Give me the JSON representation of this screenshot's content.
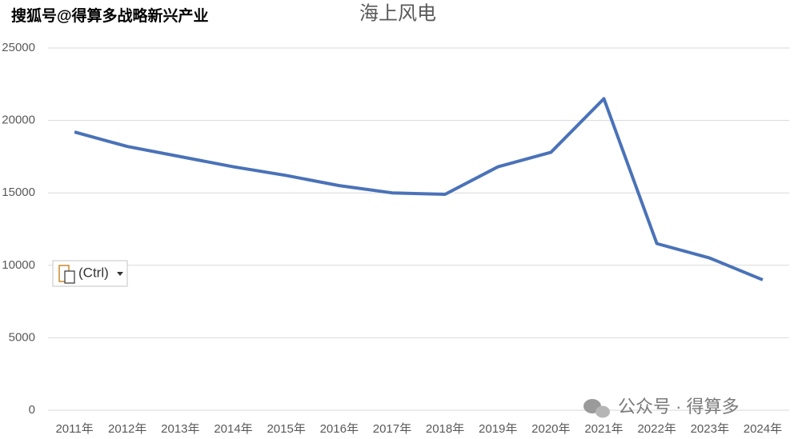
{
  "chart_data": {
    "type": "line",
    "title": "海上风电",
    "categories": [
      "2011年",
      "2012年",
      "2013年",
      "2014年",
      "2015年",
      "2016年",
      "2017年",
      "2018年",
      "2019年",
      "2020年",
      "2021年",
      "2022年",
      "2023年",
      "2024年"
    ],
    "values": [
      19200,
      18200,
      17500,
      16800,
      16200,
      15500,
      15000,
      14900,
      16800,
      17800,
      21500,
      11500,
      10500,
      9000
    ],
    "color": "#4a72b8",
    "ylim": [
      0,
      25000
    ],
    "yticks": [
      0,
      5000,
      10000,
      15000,
      20000,
      25000
    ],
    "grid": true
  },
  "watermark": "搜狐号@得算多战略新兴产业",
  "paste_button": "(Ctrl)",
  "footer_watermark": "公众号 · 得算多"
}
